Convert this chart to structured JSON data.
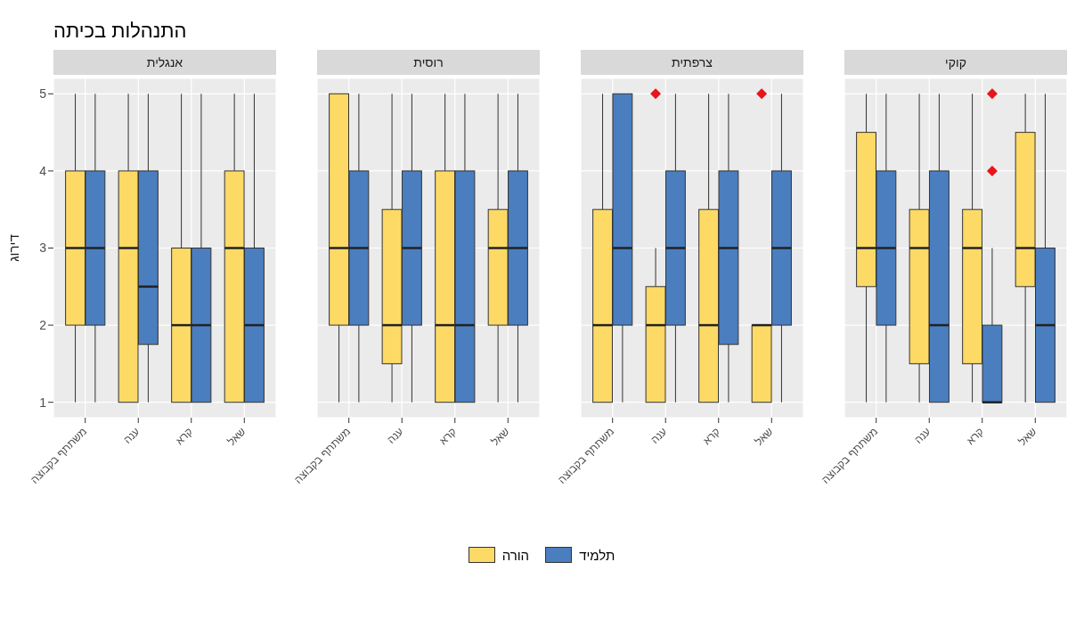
{
  "chart_data": [
    {
      "type": "other",
      "title": "התנהלות בכיתה"
    },
    {
      "type": "box",
      "title": "אנגלית",
      "ylabel": "דירוג",
      "categories": [
        "משתתף בקבוצה",
        "ענה",
        "קרא",
        "שאל"
      ],
      "ylim": [
        0.8,
        5.2
      ],
      "yticks": [
        1,
        2,
        3,
        4,
        5
      ],
      "grid": true,
      "legend": "bottom",
      "series": [
        {
          "name": "הורה",
          "color": "#fdd966",
          "boxes": [
            {
              "low": 1,
              "q1": 2,
              "median": 3,
              "q3": 4,
              "high": 5
            },
            {
              "low": 1,
              "q1": 1,
              "median": 3,
              "q3": 4,
              "high": 5
            },
            {
              "low": 1,
              "q1": 1,
              "median": 2,
              "q3": 3,
              "high": 5
            },
            {
              "low": 1,
              "q1": 1,
              "median": 3,
              "q3": 4,
              "high": 5
            }
          ]
        },
        {
          "name": "תלמיד",
          "color": "#4a7ebf",
          "boxes": [
            {
              "low": 1,
              "q1": 2,
              "median": 3,
              "q3": 4,
              "high": 5
            },
            {
              "low": 1,
              "q1": 1.75,
              "median": 2.5,
              "q3": 4,
              "high": 5
            },
            {
              "low": 1,
              "q1": 1,
              "median": 2,
              "q3": 3,
              "high": 5
            },
            {
              "low": 1,
              "q1": 1,
              "median": 2,
              "q3": 3,
              "high": 5
            }
          ]
        }
      ]
    },
    {
      "type": "box",
      "title": "רוסית",
      "categories": [
        "משתתף בקבוצה",
        "ענה",
        "קרא",
        "שאל"
      ],
      "ylim": [
        0.8,
        5.2
      ],
      "yticks": [
        1,
        2,
        3,
        4,
        5
      ],
      "grid": true,
      "tick_labels": "x",
      "series": [
        {
          "color": "#fdd966",
          "boxes": [
            {
              "low": 1,
              "q1": 2,
              "median": 3,
              "q3": 5,
              "high": 5
            },
            {
              "low": 1,
              "q1": 1.5,
              "median": 2,
              "q3": 3.5,
              "high": 5
            },
            {
              "low": 1,
              "q1": 1,
              "median": 2,
              "q3": 4,
              "high": 5
            },
            {
              "low": 1,
              "q1": 2,
              "median": 3,
              "q3": 3.5,
              "high": 5
            }
          ]
        },
        {
          "color": "#4a7ebf",
          "boxes": [
            {
              "low": 1,
              "q1": 2,
              "median": 3,
              "q3": 4,
              "high": 5
            },
            {
              "low": 1,
              "q1": 2,
              "median": 3,
              "q3": 4,
              "high": 5
            },
            {
              "low": 1,
              "q1": 1,
              "median": 2,
              "q3": 4,
              "high": 5
            },
            {
              "low": 1,
              "q1": 2,
              "median": 3,
              "q3": 4,
              "high": 5
            }
          ]
        }
      ]
    },
    {
      "type": "box",
      "title": "צרפתית",
      "categories": [
        "משתתף בקבוצה",
        "ענה",
        "קרא",
        "שאל"
      ],
      "ylim": [
        0.8,
        5.2
      ],
      "yticks": [
        1,
        2,
        3,
        4,
        5
      ],
      "grid": true,
      "tick_labels": "x",
      "series": [
        {
          "color": "#fdd966",
          "boxes": [
            {
              "low": 1,
              "q1": 1,
              "median": 2,
              "q3": 3.5,
              "high": 5
            },
            {
              "low": 1,
              "q1": 1,
              "median": 2,
              "q3": 2.5,
              "high": 3,
              "outliers": [
                5
              ]
            },
            {
              "low": 1,
              "q1": 1,
              "median": 2,
              "q3": 3.5,
              "high": 5
            },
            {
              "low": 1,
              "q1": 1,
              "median": 2,
              "q3": 2,
              "high": 2,
              "outliers": [
                5
              ]
            }
          ]
        },
        {
          "color": "#4a7ebf",
          "boxes": [
            {
              "low": 1,
              "q1": 2,
              "median": 3,
              "q3": 5,
              "high": 5
            },
            {
              "low": 1,
              "q1": 2,
              "median": 3,
              "q3": 4,
              "high": 5
            },
            {
              "low": 1,
              "q1": 1.75,
              "median": 3,
              "q3": 4,
              "high": 5
            },
            {
              "low": 1,
              "q1": 2,
              "median": 3,
              "q3": 4,
              "high": 5
            }
          ]
        }
      ]
    },
    {
      "type": "box",
      "title": "קוקי",
      "categories": [
        "משתתף בקבוצה",
        "ענה",
        "קרא",
        "שאל"
      ],
      "ylim": [
        0.8,
        5.2
      ],
      "yticks": [
        1,
        2,
        3,
        4,
        5
      ],
      "grid": true,
      "tick_labels": "x",
      "series": [
        {
          "color": "#fdd966",
          "boxes": [
            {
              "low": 1,
              "q1": 2.5,
              "median": 3,
              "q3": 4.5,
              "high": 5
            },
            {
              "low": 1,
              "q1": 1.5,
              "median": 3,
              "q3": 3.5,
              "high": 5
            },
            {
              "low": 1,
              "q1": 1.5,
              "median": 3,
              "q3": 3.5,
              "high": 5
            },
            {
              "low": 1,
              "q1": 2.5,
              "median": 3,
              "q3": 4.5,
              "high": 5
            }
          ]
        },
        {
          "color": "#4a7ebf",
          "boxes": [
            {
              "low": 1,
              "q1": 2,
              "median": 3,
              "q3": 4,
              "high": 5
            },
            {
              "low": 1,
              "q1": 1,
              "median": 2,
              "q3": 4,
              "high": 5
            },
            {
              "low": 1,
              "q1": 1,
              "median": 1,
              "q3": 2,
              "high": 3,
              "outliers": [
                4,
                5
              ]
            },
            {
              "low": 1,
              "q1": 1,
              "median": 2,
              "q3": 3,
              "high": 5
            }
          ]
        }
      ]
    }
  ]
}
